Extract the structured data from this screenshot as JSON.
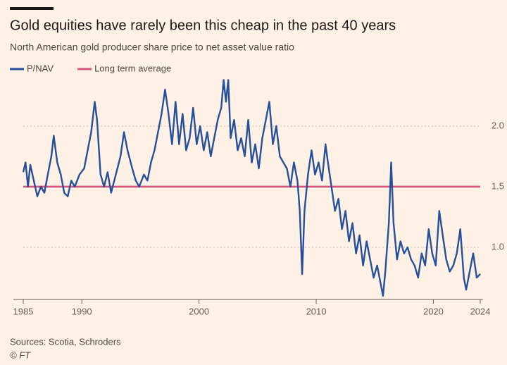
{
  "chart_data": {
    "type": "line",
    "title": "Gold equities have rarely been this cheap in the past 40 years",
    "subtitle": "North American gold producer share price to net asset value ratio",
    "source": "Sources: Scotia, Schroders",
    "credit": "© FT",
    "xlim": [
      1985,
      2024
    ],
    "xticks": [
      1985,
      1990,
      2000,
      2010,
      2020,
      2024
    ],
    "ylim": [
      0.57,
      2.4
    ],
    "yticks": [
      {
        "value": 1,
        "label": "1.0"
      },
      1.5,
      {
        "value": 2,
        "label": "2.0"
      }
    ],
    "grid": true,
    "series": [
      {
        "name": "P/NAV",
        "color": "#27509b",
        "x": [
          1985,
          1985.2,
          1985.4,
          1985.6,
          1985.9,
          1986.2,
          1986.5,
          1986.8,
          1987.1,
          1987.4,
          1987.6,
          1987.9,
          1988.2,
          1988.5,
          1988.8,
          1989.1,
          1989.4,
          1989.8,
          1990.2,
          1990.5,
          1990.8,
          1991.1,
          1991.3,
          1991.6,
          1991.9,
          1992.2,
          1992.5,
          1992.9,
          1993.3,
          1993.6,
          1993.9,
          1994.3,
          1994.6,
          1994.9,
          1995.3,
          1995.6,
          1995.9,
          1996.2,
          1996.5,
          1996.8,
          1997.1,
          1997.4,
          1997.7,
          1998.0,
          1998.3,
          1998.6,
          1998.9,
          1999.2,
          1999.5,
          1999.8,
          2000.1,
          2000.4,
          2000.7,
          2001.0,
          2001.3,
          2001.6,
          2001.9,
          2002.1,
          2002.3,
          2002.5,
          2002.7,
          2003.0,
          2003.3,
          2003.6,
          2003.9,
          2004.2,
          2004.5,
          2004.8,
          2005.1,
          2005.4,
          2005.7,
          2006.0,
          2006.3,
          2006.6,
          2006.9,
          2007.2,
          2007.5,
          2007.8,
          2008.1,
          2008.4,
          2008.6,
          2008.8,
          2009.0,
          2009.3,
          2009.6,
          2009.9,
          2010.2,
          2010.5,
          2010.8,
          2011.0,
          2011.3,
          2011.6,
          2011.9,
          2012.2,
          2012.5,
          2012.8,
          2013.1,
          2013.4,
          2013.7,
          2014.0,
          2014.3,
          2014.6,
          2014.9,
          2015.2,
          2015.5,
          2015.7,
          2015.9,
          2016.2,
          2016.4,
          2016.6,
          2016.9,
          2017.2,
          2017.5,
          2017.8,
          2018.1,
          2018.4,
          2018.7,
          2019.0,
          2019.3,
          2019.6,
          2019.9,
          2020.2,
          2020.5,
          2020.8,
          2021.1,
          2021.4,
          2021.7,
          2022.0,
          2022.3,
          2022.6,
          2022.8,
          2023.1,
          2023.4,
          2023.7,
          2024.0
        ],
        "values": [
          1.62,
          1.7,
          1.5,
          1.68,
          1.55,
          1.42,
          1.5,
          1.45,
          1.6,
          1.75,
          1.92,
          1.7,
          1.6,
          1.45,
          1.42,
          1.55,
          1.5,
          1.6,
          1.65,
          1.8,
          1.95,
          2.2,
          2.05,
          1.6,
          1.5,
          1.62,
          1.45,
          1.6,
          1.75,
          1.95,
          1.8,
          1.65,
          1.55,
          1.5,
          1.6,
          1.55,
          1.7,
          1.8,
          1.95,
          2.1,
          2.3,
          2.1,
          1.85,
          2.2,
          1.85,
          2.1,
          1.8,
          1.9,
          2.15,
          1.85,
          2.0,
          1.8,
          1.95,
          1.75,
          1.9,
          2.05,
          2.15,
          2.38,
          2.2,
          2.38,
          1.9,
          2.05,
          1.8,
          1.9,
          1.75,
          2.05,
          1.7,
          1.85,
          1.65,
          1.9,
          2.05,
          2.2,
          1.85,
          2.0,
          1.75,
          1.7,
          1.65,
          1.5,
          1.7,
          1.55,
          1.3,
          0.78,
          1.3,
          1.6,
          1.8,
          1.6,
          1.7,
          1.55,
          1.85,
          1.7,
          1.5,
          1.3,
          1.4,
          1.15,
          1.3,
          1.05,
          1.2,
          0.95,
          1.1,
          0.85,
          1.05,
          0.9,
          0.75,
          0.85,
          0.7,
          0.6,
          0.8,
          1.2,
          1.7,
          1.2,
          0.9,
          1.05,
          0.95,
          1.0,
          0.9,
          0.85,
          0.75,
          0.95,
          0.85,
          1.15,
          0.95,
          0.85,
          1.3,
          1.1,
          0.9,
          0.8,
          0.85,
          0.95,
          1.15,
          0.75,
          0.65,
          0.8,
          0.95,
          0.75,
          0.78
        ]
      },
      {
        "name": "Long term average",
        "color": "#d1567a",
        "x": [
          1985,
          2024
        ],
        "values": [
          1.5,
          1.5
        ]
      }
    ]
  }
}
